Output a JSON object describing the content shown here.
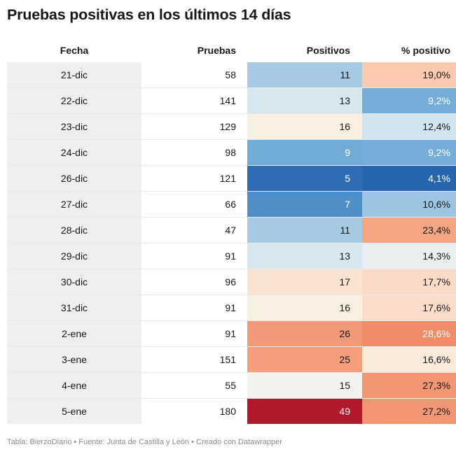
{
  "title": "Pruebas positivas en los últimos 14 días",
  "footer": "Tabla: BierzoDiario • Fuente: Junta de Castilla y León • Creado con Datawrapper",
  "chart_data": {
    "type": "table",
    "columns": [
      "Fecha",
      "Pruebas",
      "Positivos",
      "% positivo"
    ],
    "rows": [
      {
        "fecha": "21-dic",
        "pruebas": "58",
        "positivos": "11",
        "pct": "19,0%",
        "pos_bg": "#a7cae4",
        "pos_fg": "#181818",
        "pct_bg": "#fbc9b0",
        "pct_fg": "#181818"
      },
      {
        "fecha": "22-dic",
        "pruebas": "141",
        "positivos": "13",
        "pct": "9,2%",
        "pos_bg": "#d7e7f0",
        "pos_fg": "#181818",
        "pct_bg": "#74add7",
        "pct_fg": "#ffffff"
      },
      {
        "fecha": "23-dic",
        "pruebas": "129",
        "positivos": "16",
        "pct": "12,4%",
        "pos_bg": "#faf0e2",
        "pos_fg": "#181818",
        "pct_bg": "#d1e4f0",
        "pct_fg": "#181818"
      },
      {
        "fecha": "24-dic",
        "pruebas": "98",
        "positivos": "9",
        "pct": "9,2%",
        "pos_bg": "#71acd6",
        "pos_fg": "#ffffff",
        "pct_bg": "#74add7",
        "pct_fg": "#ffffff"
      },
      {
        "fecha": "26-dic",
        "pruebas": "121",
        "positivos": "5",
        "pct": "4,1%",
        "pos_bg": "#2e6db4",
        "pos_fg": "#ffffff",
        "pct_bg": "#2566af",
        "pct_fg": "#ffffff"
      },
      {
        "fecha": "27-dic",
        "pruebas": "66",
        "positivos": "7",
        "pct": "10,6%",
        "pos_bg": "#4d8fc6",
        "pos_fg": "#ffffff",
        "pct_bg": "#9cc5e2",
        "pct_fg": "#181818"
      },
      {
        "fecha": "28-dic",
        "pruebas": "47",
        "positivos": "11",
        "pct": "23,4%",
        "pos_bg": "#a7cae4",
        "pos_fg": "#181818",
        "pct_bg": "#f6a583",
        "pct_fg": "#181818"
      },
      {
        "fecha": "29-dic",
        "pruebas": "91",
        "positivos": "13",
        "pct": "14,3%",
        "pos_bg": "#d7e7f0",
        "pos_fg": "#181818",
        "pct_bg": "#e9eeee",
        "pct_fg": "#181818"
      },
      {
        "fecha": "30-dic",
        "pruebas": "96",
        "positivos": "17",
        "pct": "17,7%",
        "pos_bg": "#fbe3d1",
        "pos_fg": "#181818",
        "pct_bg": "#fbdac8",
        "pct_fg": "#181818"
      },
      {
        "fecha": "31-dic",
        "pruebas": "91",
        "positivos": "16",
        "pct": "17,6%",
        "pos_bg": "#faf0e2",
        "pos_fg": "#181818",
        "pct_bg": "#fbdcca",
        "pct_fg": "#181818"
      },
      {
        "fecha": "2-ene",
        "pruebas": "91",
        "positivos": "26",
        "pct": "28,6%",
        "pos_bg": "#f29977",
        "pos_fg": "#181818",
        "pct_bg": "#f08c68",
        "pct_fg": "#ffffff"
      },
      {
        "fecha": "3-ene",
        "pruebas": "151",
        "positivos": "25",
        "pct": "16,6%",
        "pos_bg": "#f49e7c",
        "pos_fg": "#181818",
        "pct_bg": "#f9ebdc",
        "pct_fg": "#181818"
      },
      {
        "fecha": "4-ene",
        "pruebas": "55",
        "positivos": "15",
        "pct": "27,3%",
        "pos_bg": "#f3f3ee",
        "pos_fg": "#181818",
        "pct_bg": "#f29673",
        "pct_fg": "#181818"
      },
      {
        "fecha": "5-ene",
        "pruebas": "180",
        "positivos": "49",
        "pct": "27,2%",
        "pos_bg": "#b2182b",
        "pos_fg": "#ffffff",
        "pct_bg": "#f29674",
        "pct_fg": "#181818"
      }
    ]
  }
}
